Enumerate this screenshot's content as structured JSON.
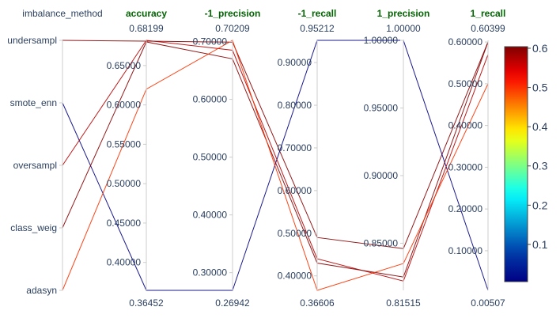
{
  "chart_data": {
    "type": "parallel_coordinates",
    "colorscale": {
      "name": "jet",
      "range": [
        0.00507,
        0.60399
      ],
      "ticks": [
        "0.1",
        "0.2",
        "0.3",
        "0.4",
        "0.5",
        "0.6"
      ]
    },
    "dimensions": [
      {
        "label": "imbalance_method",
        "categorical": true,
        "categories": [
          "undersampl",
          "smote_enn",
          "oversampl",
          "class_weig",
          "adasyn"
        ],
        "label_color": "#2a3f5f"
      },
      {
        "label": "accuracy",
        "range": [
          0.36452,
          0.68199
        ],
        "range_labels": [
          "0.68199",
          "0.36452"
        ],
        "ticks": [
          "0.65000",
          "0.60000",
          "0.55000",
          "0.50000",
          "0.45000",
          "0.40000"
        ],
        "label_color": "#006400"
      },
      {
        "label": "-1_precision",
        "range": [
          0.26942,
          0.70209
        ],
        "range_labels": [
          "0.70209",
          "0.26942"
        ],
        "ticks": [
          "0.70000",
          "0.60000",
          "0.50000",
          "0.40000",
          "0.30000"
        ],
        "label_color": "#006400"
      },
      {
        "label": "-1_recall",
        "range": [
          0.36606,
          0.95212
        ],
        "range_labels": [
          "0.95212",
          "0.36606"
        ],
        "ticks": [
          "0.90000",
          "0.80000",
          "0.70000",
          "0.60000",
          "0.50000",
          "0.40000"
        ],
        "label_color": "#006400"
      },
      {
        "label": "1_precision",
        "range": [
          0.81515,
          1.0
        ],
        "range_labels": [
          "1.00000",
          "0.81515"
        ],
        "ticks": [
          "1.00000",
          "0.95000",
          "0.90000",
          "0.85000"
        ],
        "label_color": "#006400"
      },
      {
        "label": "1_recall",
        "range": [
          0.00507,
          0.60399
        ],
        "range_labels": [
          "0.60399",
          "0.00507"
        ],
        "ticks": [
          "0.60000",
          "0.50000",
          "0.40000",
          "0.30000",
          "0.20000",
          "0.10000"
        ],
        "label_color": "#006400"
      }
    ],
    "records": [
      {
        "imbalance_method": "undersampl",
        "accuracy": 0.681,
        "-1_precision": 0.699,
        "-1_recall": 0.49,
        "1_precision": 0.846,
        "1_recall": 0.6
      },
      {
        "imbalance_method": "smote_enn",
        "accuracy": 0.36452,
        "-1_precision": 0.26942,
        "-1_recall": 0.95212,
        "1_precision": 1.0,
        "1_recall": 0.00507
      },
      {
        "imbalance_method": "oversampl",
        "accuracy": 0.68199,
        "-1_precision": 0.685,
        "-1_recall": 0.44,
        "1_precision": 0.822,
        "1_recall": 0.57
      },
      {
        "imbalance_method": "class_weig",
        "accuracy": 0.68,
        "-1_precision": 0.67,
        "-1_recall": 0.43,
        "1_precision": 0.825,
        "1_recall": 0.6
      },
      {
        "imbalance_method": "adasyn",
        "accuracy": 0.62,
        "-1_precision": 0.70209,
        "-1_recall": 0.36606,
        "1_precision": 0.835,
        "1_recall": 0.5
      }
    ]
  }
}
